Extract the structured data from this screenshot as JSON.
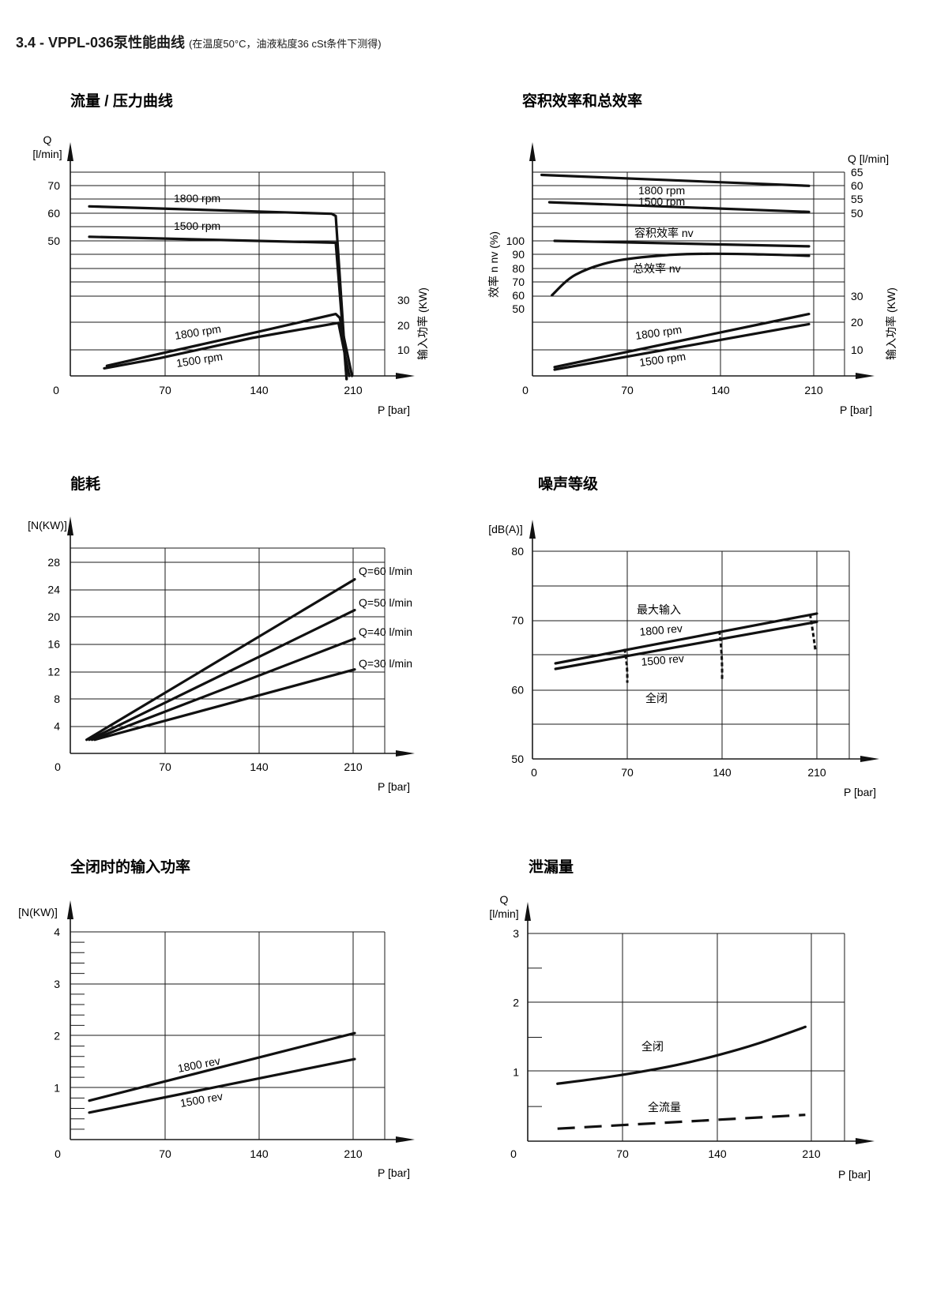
{
  "page": {
    "heading": "3.4 - VPPL-036泵性能曲线",
    "note": "(在温度50°C，油液粘度36 cSt条件下测得)"
  },
  "chart_data": [
    {
      "id": "flow",
      "type": "line",
      "title": "流量 / 压力曲线",
      "xlabel": "P [bar]",
      "ylabel": "Q\n[l/min]",
      "y2label": "输入功率 (KW)",
      "xlim": [
        0,
        230
      ],
      "xticks": [
        "0",
        "70",
        "140",
        "210"
      ],
      "yticks_left": [
        "50",
        "60",
        "70"
      ],
      "yticks_right": [
        "10",
        "20",
        "30"
      ],
      "series": [
        {
          "name": "1800 rpm",
          "axis": "Q",
          "x": [
            14,
            193,
            196,
            204
          ],
          "y": [
            62.5,
            59.8,
            59,
            0
          ]
        },
        {
          "name": "1500 rpm",
          "axis": "Q",
          "x": [
            14,
            196,
            204
          ],
          "y": [
            51.5,
            49.3,
            0
          ]
        },
        {
          "name": "1800 rpm",
          "axis": "KW",
          "x": [
            27,
            68,
            135,
            196,
            199,
            208
          ],
          "y": [
            4,
            9,
            17,
            24.5,
            23,
            0
          ]
        },
        {
          "name": "1500 rpm",
          "axis": "KW",
          "x": [
            25,
            66,
            134,
            198,
            206
          ],
          "y": [
            3,
            7,
            15,
            21,
            0
          ]
        }
      ],
      "grid": true
    },
    {
      "id": "eff",
      "type": "line",
      "title": "容积效率和总效率",
      "xlabel": "P [bar]",
      "ylabel": "效率  n nv (%)",
      "y2label_top": "Q [l/min]",
      "y2label_bottom": "输入功率 (KW)",
      "xticks": [
        "0",
        "70",
        "140",
        "210"
      ],
      "yticks_left": [
        "50",
        "60",
        "70",
        "80",
        "90",
        "100"
      ],
      "yticks_right_top": [
        "50",
        "55",
        "60",
        "65"
      ],
      "yticks_right_bottom": [
        "10",
        "20",
        "30"
      ],
      "labels": {
        "volumetric": "容积效率 nv",
        "total": "总效率 nv"
      },
      "series": [
        {
          "name": "1800 rpm",
          "axis": "Q",
          "x": [
            4,
            210
          ],
          "y": [
            64,
            60
          ]
        },
        {
          "name": "1500 rpm",
          "axis": "Q",
          "x": [
            10,
            210
          ],
          "y": [
            54,
            50.5
          ]
        },
        {
          "name": "容积效率 nv",
          "axis": "eff",
          "x": [
            14,
            210
          ],
          "y": [
            100,
            96
          ]
        },
        {
          "name": "总效率 nv",
          "axis": "eff",
          "x": [
            12,
            30,
            60,
            100,
            135,
            175,
            210
          ],
          "y": [
            60,
            75,
            85,
            89.5,
            90.5,
            90,
            89
          ]
        },
        {
          "name": "1800 rpm",
          "axis": "KW",
          "x": [
            14,
            210
          ],
          "y": [
            3.5,
            24.5
          ]
        },
        {
          "name": "1500 rpm",
          "axis": "KW",
          "x": [
            14,
            210
          ],
          "y": [
            2.5,
            20.5
          ]
        }
      ],
      "grid": true
    },
    {
      "id": "power",
      "type": "line",
      "title": "能耗",
      "xlabel": "P [bar]",
      "ylabel": "[N(KW)]",
      "xticks": [
        "0",
        "70",
        "140",
        "210"
      ],
      "yticks": [
        "4",
        "8",
        "12",
        "16",
        "20",
        "24",
        "28"
      ],
      "xlim": [
        0,
        230
      ],
      "ylim": [
        0,
        30
      ],
      "series": [
        {
          "name": "Q=60 l/min",
          "x": [
            12,
            210
          ],
          "y": [
            2,
            25.5
          ]
        },
        {
          "name": "Q=50 l/min",
          "x": [
            14,
            210
          ],
          "y": [
            2,
            21
          ]
        },
        {
          "name": "Q=40 l/min",
          "x": [
            16,
            210
          ],
          "y": [
            2,
            16.8
          ]
        },
        {
          "name": "Q=30 l/min",
          "x": [
            18,
            210
          ],
          "y": [
            2,
            12.3
          ]
        }
      ],
      "grid": true
    },
    {
      "id": "noise",
      "type": "line",
      "title": "噪声等级",
      "xlabel": "P [bar]",
      "ylabel": "[dB(A)]",
      "xticks": [
        "0",
        "70",
        "140",
        "210"
      ],
      "yticks": [
        "50",
        "60",
        "70",
        "80"
      ],
      "xlim": [
        0,
        235
      ],
      "ylim": [
        50,
        80
      ],
      "labels": {
        "max": "最大输入",
        "closed": "全闭"
      },
      "series": [
        {
          "name": "1800 rev",
          "x": [
            17,
            210
          ],
          "y": [
            63.8,
            71
          ]
        },
        {
          "name": "1500 rev",
          "x": [
            17,
            210
          ],
          "y": [
            63,
            69.8
          ]
        },
        {
          "name": "全闭",
          "style": "dashed-drop",
          "x": [
            68,
            70,
            138,
            140,
            205,
            209
          ],
          "y": [
            65.9,
            61,
            68.5,
            61.5,
            70.9,
            65.5
          ]
        }
      ],
      "grid": true
    },
    {
      "id": "closed",
      "type": "line",
      "title": "全闭时的输入功率",
      "xlabel": "P [bar]",
      "ylabel": "[N(KW)]",
      "xticks": [
        "0",
        "70",
        "140",
        "210"
      ],
      "yticks": [
        "1",
        "2",
        "3",
        "4"
      ],
      "xlim": [
        0,
        230
      ],
      "ylim": [
        0,
        4
      ],
      "series": [
        {
          "name": "1800 rev",
          "x": [
            14,
            210
          ],
          "y": [
            0.75,
            2.05
          ]
        },
        {
          "name": "1500 rev",
          "x": [
            14,
            210
          ],
          "y": [
            0.52,
            1.55
          ]
        }
      ],
      "grid": true
    },
    {
      "id": "leak",
      "type": "line",
      "title": "泄漏量",
      "xlabel": "P [bar]",
      "ylabel": "Q\n[l/min]",
      "xticks": [
        "0",
        "70",
        "140",
        "210"
      ],
      "yticks": [
        "1",
        "2",
        "3"
      ],
      "xlim": [
        0,
        235
      ],
      "ylim": [
        0,
        3
      ],
      "series": [
        {
          "name": "全闭",
          "x": [
            22,
            50,
            80,
            110,
            140,
            170,
            205
          ],
          "y": [
            0.83,
            0.9,
            0.99,
            1.1,
            1.24,
            1.41,
            1.65
          ]
        },
        {
          "name": "全流量",
          "style": "dashed",
          "x": [
            22,
            205
          ],
          "y": [
            0.18,
            0.38
          ]
        }
      ],
      "grid": true
    }
  ]
}
